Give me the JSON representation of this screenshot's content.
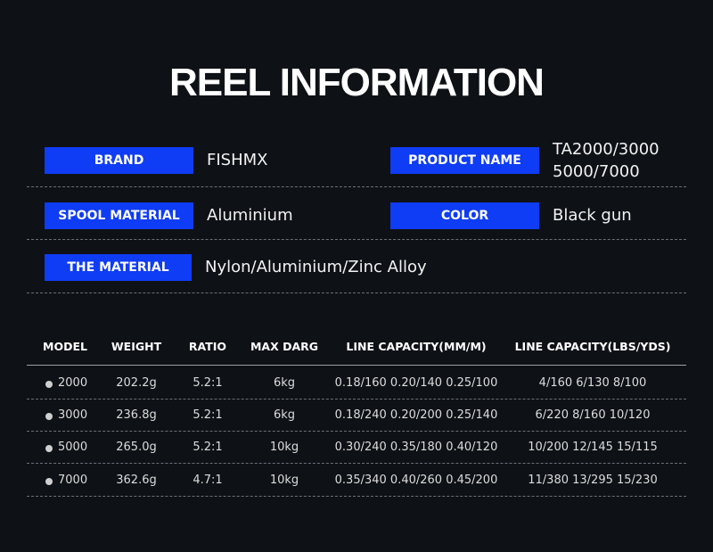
{
  "header": {
    "title": "REEL INFORMATION"
  },
  "info": [
    {
      "label": "BRAND",
      "value": [
        "FISHMX"
      ]
    },
    {
      "label": "PRODUCT NAME",
      "value": [
        "TA2000/3000",
        "5000/7000"
      ]
    },
    {
      "label": "SPOOL MATERIAL",
      "value": [
        "Aluminium"
      ]
    },
    {
      "label": "COLOR",
      "value": [
        "Black gun"
      ]
    },
    {
      "label": "THE MATERIAL",
      "value": [
        "Nylon/Aluminium/Zinc Alloy"
      ]
    }
  ],
  "table": {
    "headers": [
      "MODEL",
      "WEIGHT",
      "RATIO",
      "MAX DARG",
      "LINE CAPACITY(MM/M)",
      "LINE CAPACITY(LBS/YDS)"
    ],
    "rows": [
      [
        "2000",
        "202.2g",
        "5.2:1",
        "6kg",
        "0.18/160 0.20/140 0.25/100",
        "4/160 6/130 8/100"
      ],
      [
        "3000",
        "236.8g",
        "5.2:1",
        "6kg",
        "0.18/240 0.20/200 0.25/140",
        "6/220 8/160 10/120"
      ],
      [
        "5000",
        "265.0g",
        "5.2:1",
        "10kg",
        "0.30/240 0.35/180 0.40/120",
        "10/200 12/145 15/115"
      ],
      [
        "7000",
        "362.6g",
        "4.7:1",
        "10kg",
        "0.35/340 0.40/260 0.45/200",
        "11/380 13/295 15/230"
      ]
    ]
  }
}
